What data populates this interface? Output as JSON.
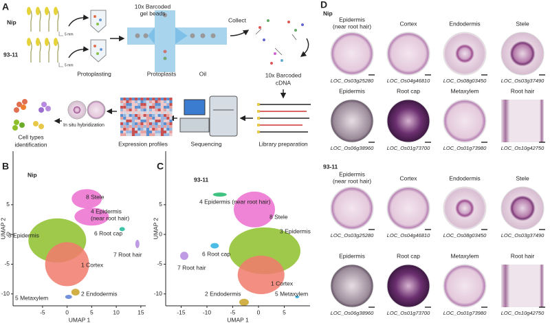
{
  "panel_labels": [
    "A",
    "B",
    "C",
    "D"
  ],
  "workflow": {
    "samples": [
      "Nip",
      "93-11"
    ],
    "scale": "5 mm",
    "gel_beads": [
      "10x Barcoded",
      "gel beads"
    ],
    "protoplasting": "Protoplasting",
    "protoplasts": "Protoplasts",
    "oil": "Oil",
    "collect": "Collect",
    "cdna": [
      "10x Barcoded",
      "cDNA"
    ],
    "library": "Library preparation",
    "sequencing": "Sequencing",
    "expression": "Expression profiles",
    "in_situ": "In situ hybridization",
    "identification": [
      "Cell types",
      "identification"
    ]
  },
  "chart_data": [
    {
      "type": "scatter",
      "title": "Nip",
      "xlabel": "UMAP 1",
      "ylabel": "UMAP 2",
      "xlim": [
        -11,
        16
      ],
      "ylim": [
        -12,
        14
      ],
      "xticks": [
        -5,
        0,
        5,
        10,
        15
      ],
      "yticks": [
        5,
        0,
        -5,
        -10
      ],
      "clusters": [
        {
          "name": "8 Stele",
          "color": "#ec6fcf",
          "x": 4,
          "y": 6
        },
        {
          "name": [
            "4 Epidermis",
            "(near root hair)"
          ],
          "color": "#ec6fcf",
          "x": 5,
          "y": 3
        },
        {
          "name": "6 Root cap",
          "color": "#1fb89a",
          "x": 11.2,
          "y": 0.9
        },
        {
          "name": "7 Root hair",
          "color": "#b58ae0",
          "x": 14.3,
          "y": -1.6
        },
        {
          "name": "3 Epidermis",
          "color": "#8dbf2a",
          "x": -2,
          "y": -1
        },
        {
          "name": "1 Cortex",
          "color": "#f07a6c",
          "x": 0,
          "y": -5
        },
        {
          "name": "2 Endodermis",
          "color": "#c9a227",
          "x": 1.7,
          "y": -9.7
        },
        {
          "name": "5 Metaxylem",
          "color": "#5a7fd6",
          "x": 0.3,
          "y": -10.5
        }
      ]
    },
    {
      "type": "scatter",
      "title": "93-11",
      "xlabel": "UMAP 1",
      "ylabel": "UMAP 2",
      "xlim": [
        -18,
        10
      ],
      "ylim": [
        -12,
        14
      ],
      "xticks": [
        -15,
        -10,
        -5,
        0,
        5
      ],
      "yticks": [
        5,
        0,
        -5,
        -10
      ],
      "clusters": [
        {
          "name": "4 Epidermis (near root hair)",
          "color": "#1fb86a",
          "x": -7.5,
          "y": 6.7
        },
        {
          "name": "8 Stele",
          "color": "#ec6fcf",
          "x": -0.8,
          "y": 4.2
        },
        {
          "name": "3 Epidermis",
          "color": "#8dbf2a",
          "x": 1.2,
          "y": -2.75
        },
        {
          "name": "6 Root cap",
          "color": "#2ab0e0",
          "x": -8.5,
          "y": -1.9
        },
        {
          "name": "7 Root hair",
          "color": "#b58ae0",
          "x": -14.4,
          "y": -3.6
        },
        {
          "name": "1 Cortex",
          "color": "#f07a6c",
          "x": 0.5,
          "y": -6.8
        },
        {
          "name": "2 Endodermis",
          "color": "#c9a227",
          "x": -2.8,
          "y": -11.4
        },
        {
          "name": "5 Metaxylem",
          "color": "#2ab0e0",
          "x": 7.5,
          "y": -10.5
        }
      ]
    }
  ],
  "in_situ": {
    "groups": [
      {
        "title": "Nip",
        "rows": [
          [
            {
              "cell": [
                "Epidermis",
                "(near root hair)"
              ],
              "gene": "LOC_Os03g25280"
            },
            {
              "cell": "Cortex",
              "gene": "LOC_Os04g46810"
            },
            {
              "cell": "Endodermis",
              "gene": "LOC_Os08g03450"
            },
            {
              "cell": "Stele",
              "gene": "LOC_Os03g37490"
            }
          ],
          [
            {
              "cell": "Epidermis",
              "gene": "LOC_Os06g38960"
            },
            {
              "cell": "Root cap",
              "gene": "LOC_Os01g73700"
            },
            {
              "cell": "Metaxylem",
              "gene": "LOC_Os01g73980"
            },
            {
              "cell": "Root hair",
              "gene": "LOC_Os10g42750"
            }
          ]
        ]
      },
      {
        "title": "93-11",
        "rows": [
          [
            {
              "cell": [
                "Epidermis",
                "(near root hair)"
              ],
              "gene": "LOC_Os03g25280"
            },
            {
              "cell": "Cortex",
              "gene": "LOC_Os04g46810"
            },
            {
              "cell": "Endodermis",
              "gene": "LOC_Os08g03450"
            },
            {
              "cell": "Stele",
              "gene": "LOC_Os03g37490"
            }
          ],
          [
            {
              "cell": "Epidermis",
              "gene": "LOC_Os06g38960"
            },
            {
              "cell": "Root cap",
              "gene": "LOC_Os01g73700"
            },
            {
              "cell": "Metaxylem",
              "gene": "LOC_Os01g73980"
            },
            {
              "cell": "Root hair",
              "gene": "LOC_Os10g42750"
            }
          ]
        ]
      }
    ]
  }
}
